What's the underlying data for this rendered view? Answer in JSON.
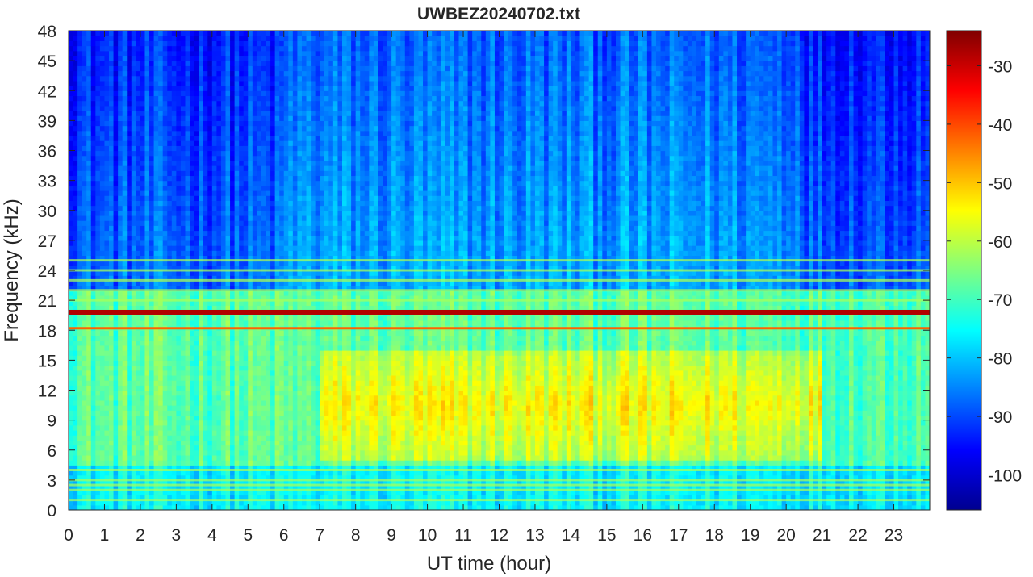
{
  "chart_data": {
    "type": "heatmap",
    "title": "UWBEZ20240702.txt",
    "xlabel": "UT time (hour)",
    "ylabel": "Frequency (kHz)",
    "xlim": [
      0,
      24
    ],
    "ylim": [
      0,
      48
    ],
    "x_ticks": [
      "0",
      "1",
      "2",
      "3",
      "4",
      "5",
      "6",
      "7",
      "8",
      "9",
      "10",
      "11",
      "12",
      "13",
      "14",
      "15",
      "16",
      "17",
      "18",
      "19",
      "20",
      "21",
      "22",
      "23"
    ],
    "y_ticks": [
      "0",
      "3",
      "6",
      "9",
      "12",
      "15",
      "18",
      "21",
      "24",
      "27",
      "30",
      "33",
      "36",
      "39",
      "42",
      "45",
      "48"
    ],
    "colorbar": {
      "range": [
        -106,
        -24
      ],
      "ticks": [
        "-30",
        "-40",
        "-50",
        "-60",
        "-70",
        "-80",
        "-90",
        "-100"
      ],
      "colormap": "jet"
    },
    "colormap_stops": [
      "#00008f",
      "#0000ff",
      "#00ffff",
      "#ffff00",
      "#ff0000",
      "#800000"
    ],
    "features": {
      "background_high_freq_db": -82,
      "background_low_freq_db": -76,
      "enhanced_band": {
        "freq_khz": [
          5,
          16
        ],
        "time_h": [
          7,
          21
        ],
        "level_db": -55
      },
      "strong_line": {
        "freq_khz": 19.8,
        "level_db": -28
      },
      "secondary_line": {
        "freq_khz": 18.2,
        "level_db": -42
      },
      "weak_lines_khz": [
        25,
        24,
        23,
        22,
        21,
        4,
        3,
        2.5,
        2,
        1
      ]
    },
    "grid": false
  }
}
